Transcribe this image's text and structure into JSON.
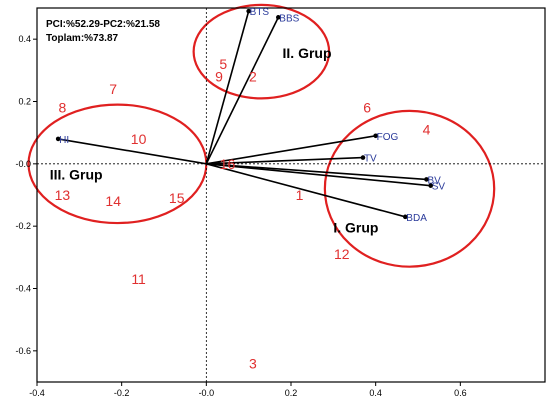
{
  "info": {
    "line1": "PCI:%52.29-PC2:%21.58",
    "line2": "Toplam:%73.87"
  },
  "chart_data": {
    "type": "scatter",
    "subtype": "pca-biplot",
    "xlim": [
      -0.4,
      0.8
    ],
    "ylim": [
      -0.7,
      0.5
    ],
    "xticks": [
      -0.4,
      -0.2,
      0.0,
      0.2,
      0.4,
      0.6
    ],
    "xtick_labels": [
      "-0.4",
      "-0.2",
      "-0.0",
      "0.2",
      "0.4",
      "0.6"
    ],
    "yticks": [
      0.4,
      0.2,
      0.0,
      -0.2,
      -0.4,
      -0.6
    ],
    "ytick_labels": [
      "0.4",
      "0.2",
      "-0.0",
      "-0.2",
      "-0.4",
      "-0.6"
    ],
    "grid": false,
    "zero_lines": true,
    "vectors": [
      {
        "label": "BTS",
        "x": 0.1,
        "y": 0.49
      },
      {
        "label": "BBS",
        "x": 0.17,
        "y": 0.47
      },
      {
        "label": "HI",
        "x": -0.35,
        "y": 0.08
      },
      {
        "label": "FOG",
        "x": 0.4,
        "y": 0.09
      },
      {
        "label": "TV",
        "x": 0.37,
        "y": 0.02
      },
      {
        "label": "BV",
        "x": 0.52,
        "y": -0.05
      },
      {
        "label": "SV",
        "x": 0.53,
        "y": -0.07
      },
      {
        "label": "BDA",
        "x": 0.47,
        "y": -0.17
      }
    ],
    "observations": [
      {
        "label": "1",
        "x": 0.22,
        "y": -0.1
      },
      {
        "label": "2",
        "x": 0.11,
        "y": 0.28
      },
      {
        "label": "3",
        "x": 0.11,
        "y": -0.64
      },
      {
        "label": "4",
        "x": 0.52,
        "y": 0.11
      },
      {
        "label": "5",
        "x": 0.04,
        "y": 0.32
      },
      {
        "label": "6",
        "x": 0.38,
        "y": 0.18
      },
      {
        "label": "7",
        "x": -0.22,
        "y": 0.24
      },
      {
        "label": "8",
        "x": -0.34,
        "y": 0.18
      },
      {
        "label": "9",
        "x": 0.03,
        "y": 0.28
      },
      {
        "label": "10",
        "x": -0.16,
        "y": 0.08
      },
      {
        "label": "11",
        "x": -0.16,
        "y": -0.37
      },
      {
        "label": "12",
        "x": 0.32,
        "y": -0.29
      },
      {
        "label": "13",
        "x": -0.34,
        "y": -0.1
      },
      {
        "label": "14",
        "x": -0.22,
        "y": -0.12
      },
      {
        "label": "15",
        "x": -0.07,
        "y": -0.11
      },
      {
        "label": "16",
        "x": 0.05,
        "y": 0.0
      }
    ],
    "groups": [
      {
        "label": "I. Grup",
        "cx": 0.48,
        "cy": -0.08,
        "rx": 0.2,
        "ry": 0.25,
        "label_x": 0.3,
        "label_y": -0.22
      },
      {
        "label": "II. Grup",
        "cx": 0.13,
        "cy": 0.36,
        "rx": 0.16,
        "ry": 0.15,
        "label_x": 0.18,
        "label_y": 0.34
      },
      {
        "label": "III. Grup",
        "cx": -0.21,
        "cy": 0.0,
        "rx": 0.21,
        "ry": 0.19,
        "label_x": -0.37,
        "label_y": -0.05
      }
    ]
  }
}
